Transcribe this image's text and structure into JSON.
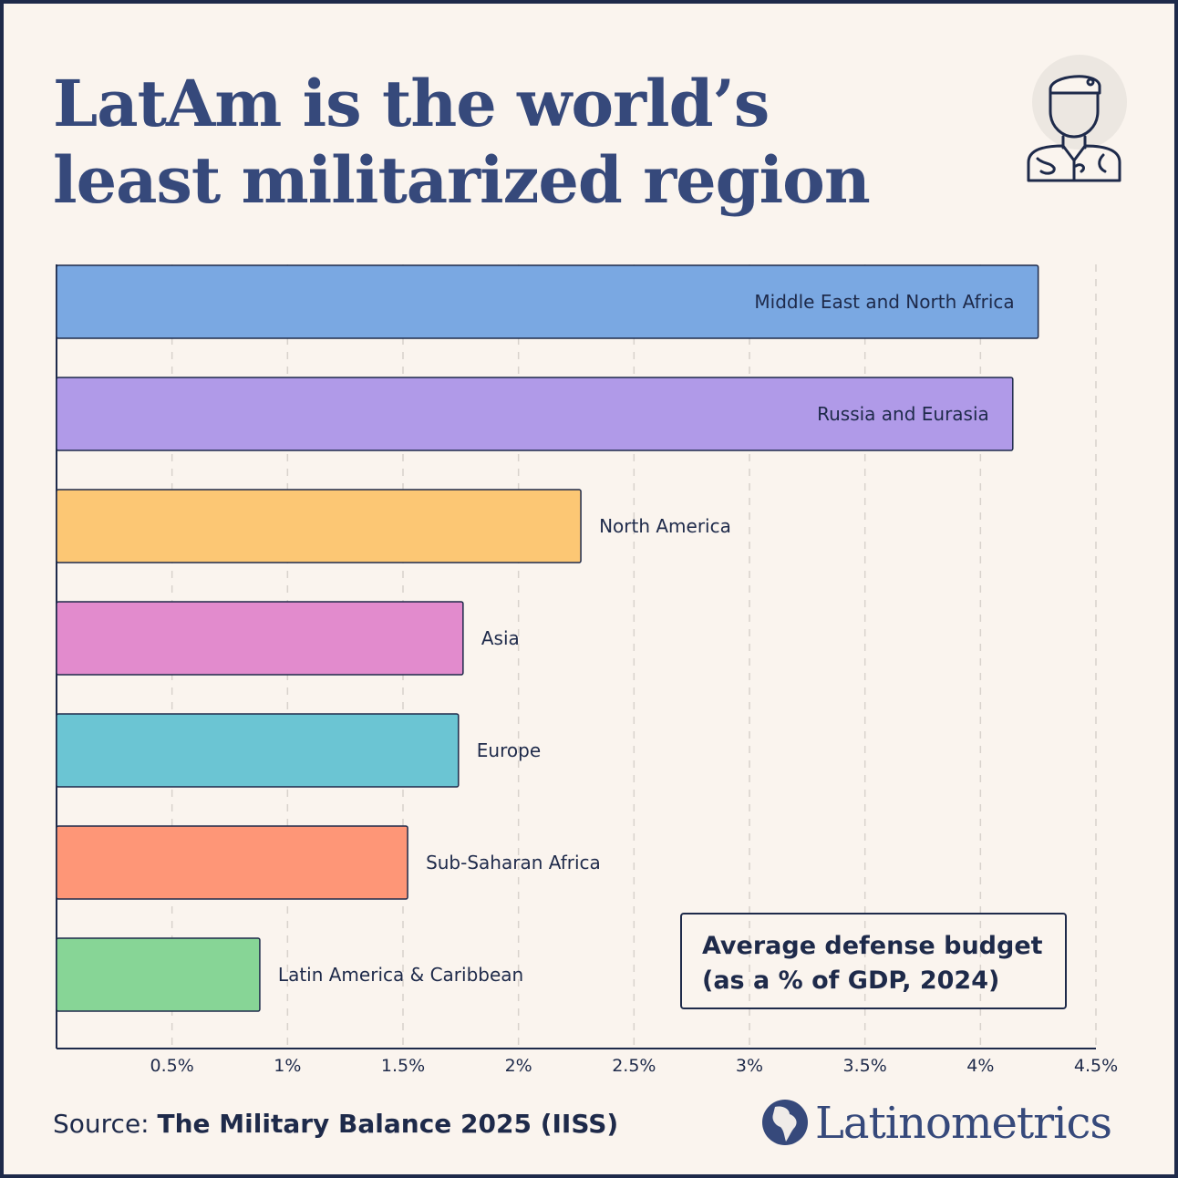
{
  "title": {
    "line1": "LatAm is the world’s",
    "line2": "least militarized region"
  },
  "legend": {
    "line1": "Average defense budget",
    "line2": "(as a % of GDP, 2024)"
  },
  "source": {
    "prefix": "Source:",
    "text": "The Military Balance 2025 (IISS)"
  },
  "brand": {
    "name": "Latinometrics"
  },
  "icons": {
    "header": "soldier-icon",
    "brand": "latam-map-logo-icon"
  },
  "colors": {
    "background": "#faf4ee",
    "frame": "#1e2a4a",
    "title": "#36497b",
    "gridline": "#d8d2cc"
  },
  "chart_data": {
    "type": "bar",
    "orientation": "horizontal",
    "categories": [
      "Middle East and North Africa",
      "Russia and Eurasia",
      "North America",
      "Asia",
      "Europe",
      "Sub-Saharan Africa",
      "Latin America & Caribbean"
    ],
    "values": [
      4.25,
      4.14,
      2.27,
      1.76,
      1.74,
      1.52,
      0.88
    ],
    "colors": [
      "#7aa8e2",
      "#b09ae8",
      "#fcc774",
      "#e28bcd",
      "#6bc5d3",
      "#fe9677",
      "#87d596"
    ],
    "xlim": [
      0,
      4.5
    ],
    "xticks": [
      0.5,
      1,
      1.5,
      2,
      2.5,
      3,
      3.5,
      4,
      4.5
    ],
    "xtick_labels": [
      "0.5%",
      "1%",
      "1.5%",
      "2%",
      "2.5%",
      "3%",
      "3.5%",
      "4%",
      "4.5%"
    ],
    "label_inside": [
      true,
      true,
      false,
      false,
      false,
      false,
      false
    ],
    "grid": "vertical dashed",
    "xlabel": "",
    "ylabel": ""
  }
}
